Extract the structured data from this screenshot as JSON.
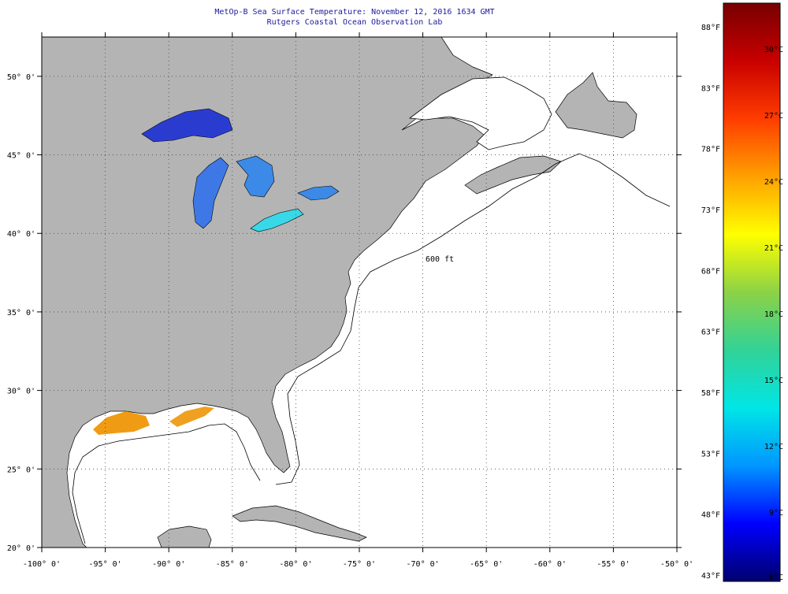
{
  "title": {
    "line1": "MetOp-B Sea Surface Temperature:  November 12, 2016 1634 GMT",
    "line2": "Rutgers Coastal Ocean Observation Lab"
  },
  "map": {
    "lon_range": [
      -100,
      -50
    ],
    "lat_range": [
      20,
      52.5
    ],
    "lon_ticks": [
      {
        "value": -100,
        "label": "-100° 0'"
      },
      {
        "value": -95,
        "label": "-95° 0'"
      },
      {
        "value": -90,
        "label": "-90° 0'"
      },
      {
        "value": -85,
        "label": "-85° 0'"
      },
      {
        "value": -80,
        "label": "-80° 0'"
      },
      {
        "value": -75,
        "label": "-75° 0'"
      },
      {
        "value": -70,
        "label": "-70° 0'"
      },
      {
        "value": -65,
        "label": "-65° 0'"
      },
      {
        "value": -60,
        "label": "-60° 0'"
      },
      {
        "value": -55,
        "label": "-55° 0'"
      },
      {
        "value": -50,
        "label": "-50° 0'"
      }
    ],
    "lat_ticks": [
      {
        "value": 20,
        "label": "20° 0'"
      },
      {
        "value": 25,
        "label": "25° 0'"
      },
      {
        "value": 30,
        "label": "30° 0'"
      },
      {
        "value": 35,
        "label": "35° 0'"
      },
      {
        "value": 40,
        "label": "40° 0'"
      },
      {
        "value": 45,
        "label": "45° 0'"
      },
      {
        "value": 50,
        "label": "50° 0'"
      }
    ],
    "land_color": "#b4b4b4",
    "ocean_nodata_color": "#ffffff",
    "contour_label": "600 ft"
  },
  "colorbar": {
    "fahrenheit": [
      "88°F",
      "83°F",
      "78°F",
      "73°F",
      "68°F",
      "63°F",
      "58°F",
      "53°F",
      "48°F",
      "43°F"
    ],
    "celsius": [
      "30°C",
      "27°C",
      "24°C",
      "21°C",
      "18°C",
      "15°C",
      "12°C",
      "9°C",
      "6°C"
    ],
    "colors": [
      "#00006e",
      "#0000ff",
      "#0096ff",
      "#00e6e6",
      "#32d296",
      "#8cd246",
      "#ffff00",
      "#ffa000",
      "#ff3c00",
      "#c80000",
      "#780000"
    ]
  }
}
